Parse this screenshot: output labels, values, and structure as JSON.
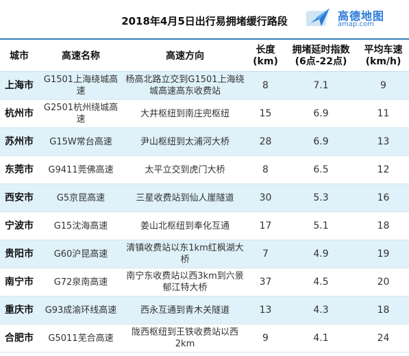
{
  "title": "2018年4月5日出行易拥堵缓行路段",
  "logo": {
    "cn": "高德地图",
    "en": "amap.com"
  },
  "headers": {
    "city": "城市",
    "highway": "高速名称",
    "direction": "高速方向",
    "length": [
      "长度",
      "(km)"
    ],
    "index": [
      "拥堵延时指数",
      "(6点-22点)"
    ],
    "speed": [
      "平均车速",
      "(km/h)"
    ]
  },
  "rows": [
    {
      "city": "上海市",
      "highway": "G1501上海绕城高速",
      "direction": "杨高北路立交到G1501上海绕城高速高东收费站",
      "length": "8",
      "index": "7.1",
      "speed": "9"
    },
    {
      "city": "杭州市",
      "highway": "G2501杭州绕城高速",
      "direction": "大井枢纽到南庄兜枢纽",
      "length": "15",
      "index": "6.9",
      "speed": "11"
    },
    {
      "city": "苏州市",
      "highway": "G15W常台高速",
      "direction": "尹山枢纽到太浦河大桥",
      "length": "28",
      "index": "6.9",
      "speed": "13"
    },
    {
      "city": "东莞市",
      "highway": "G9411莞佛高速",
      "direction": "太平立交到虎门大桥",
      "length": "8",
      "index": "6.5",
      "speed": "12"
    },
    {
      "city": "西安市",
      "highway": "G5京昆高速",
      "direction": "三星收费站到仙人崖隧道",
      "length": "30",
      "index": "5.3",
      "speed": "16"
    },
    {
      "city": "宁波市",
      "highway": "G15沈海高速",
      "direction": "姜山北枢纽到奉化互通",
      "length": "17",
      "index": "5.1",
      "speed": "18"
    },
    {
      "city": "贵阳市",
      "highway": "G60沪昆高速",
      "direction": "清镇收费站以东1km红枫湖大桥",
      "length": "7",
      "index": "4.9",
      "speed": "19"
    },
    {
      "city": "南宁市",
      "highway": "G72泉南高速",
      "direction": "南宁东收费站以西3km到六景郁江特大桥",
      "length": "37",
      "index": "4.5",
      "speed": "20"
    },
    {
      "city": "重庆市",
      "highway": "G93成渝环线高速",
      "direction": "西永互通到青木关隧道",
      "length": "13",
      "index": "4.3",
      "speed": "18"
    },
    {
      "city": "合肥市",
      "highway": "G5011芜合高速",
      "direction": "陇西枢纽到王铁收费站以西2km",
      "length": "9",
      "index": "4.1",
      "speed": "24"
    }
  ]
}
